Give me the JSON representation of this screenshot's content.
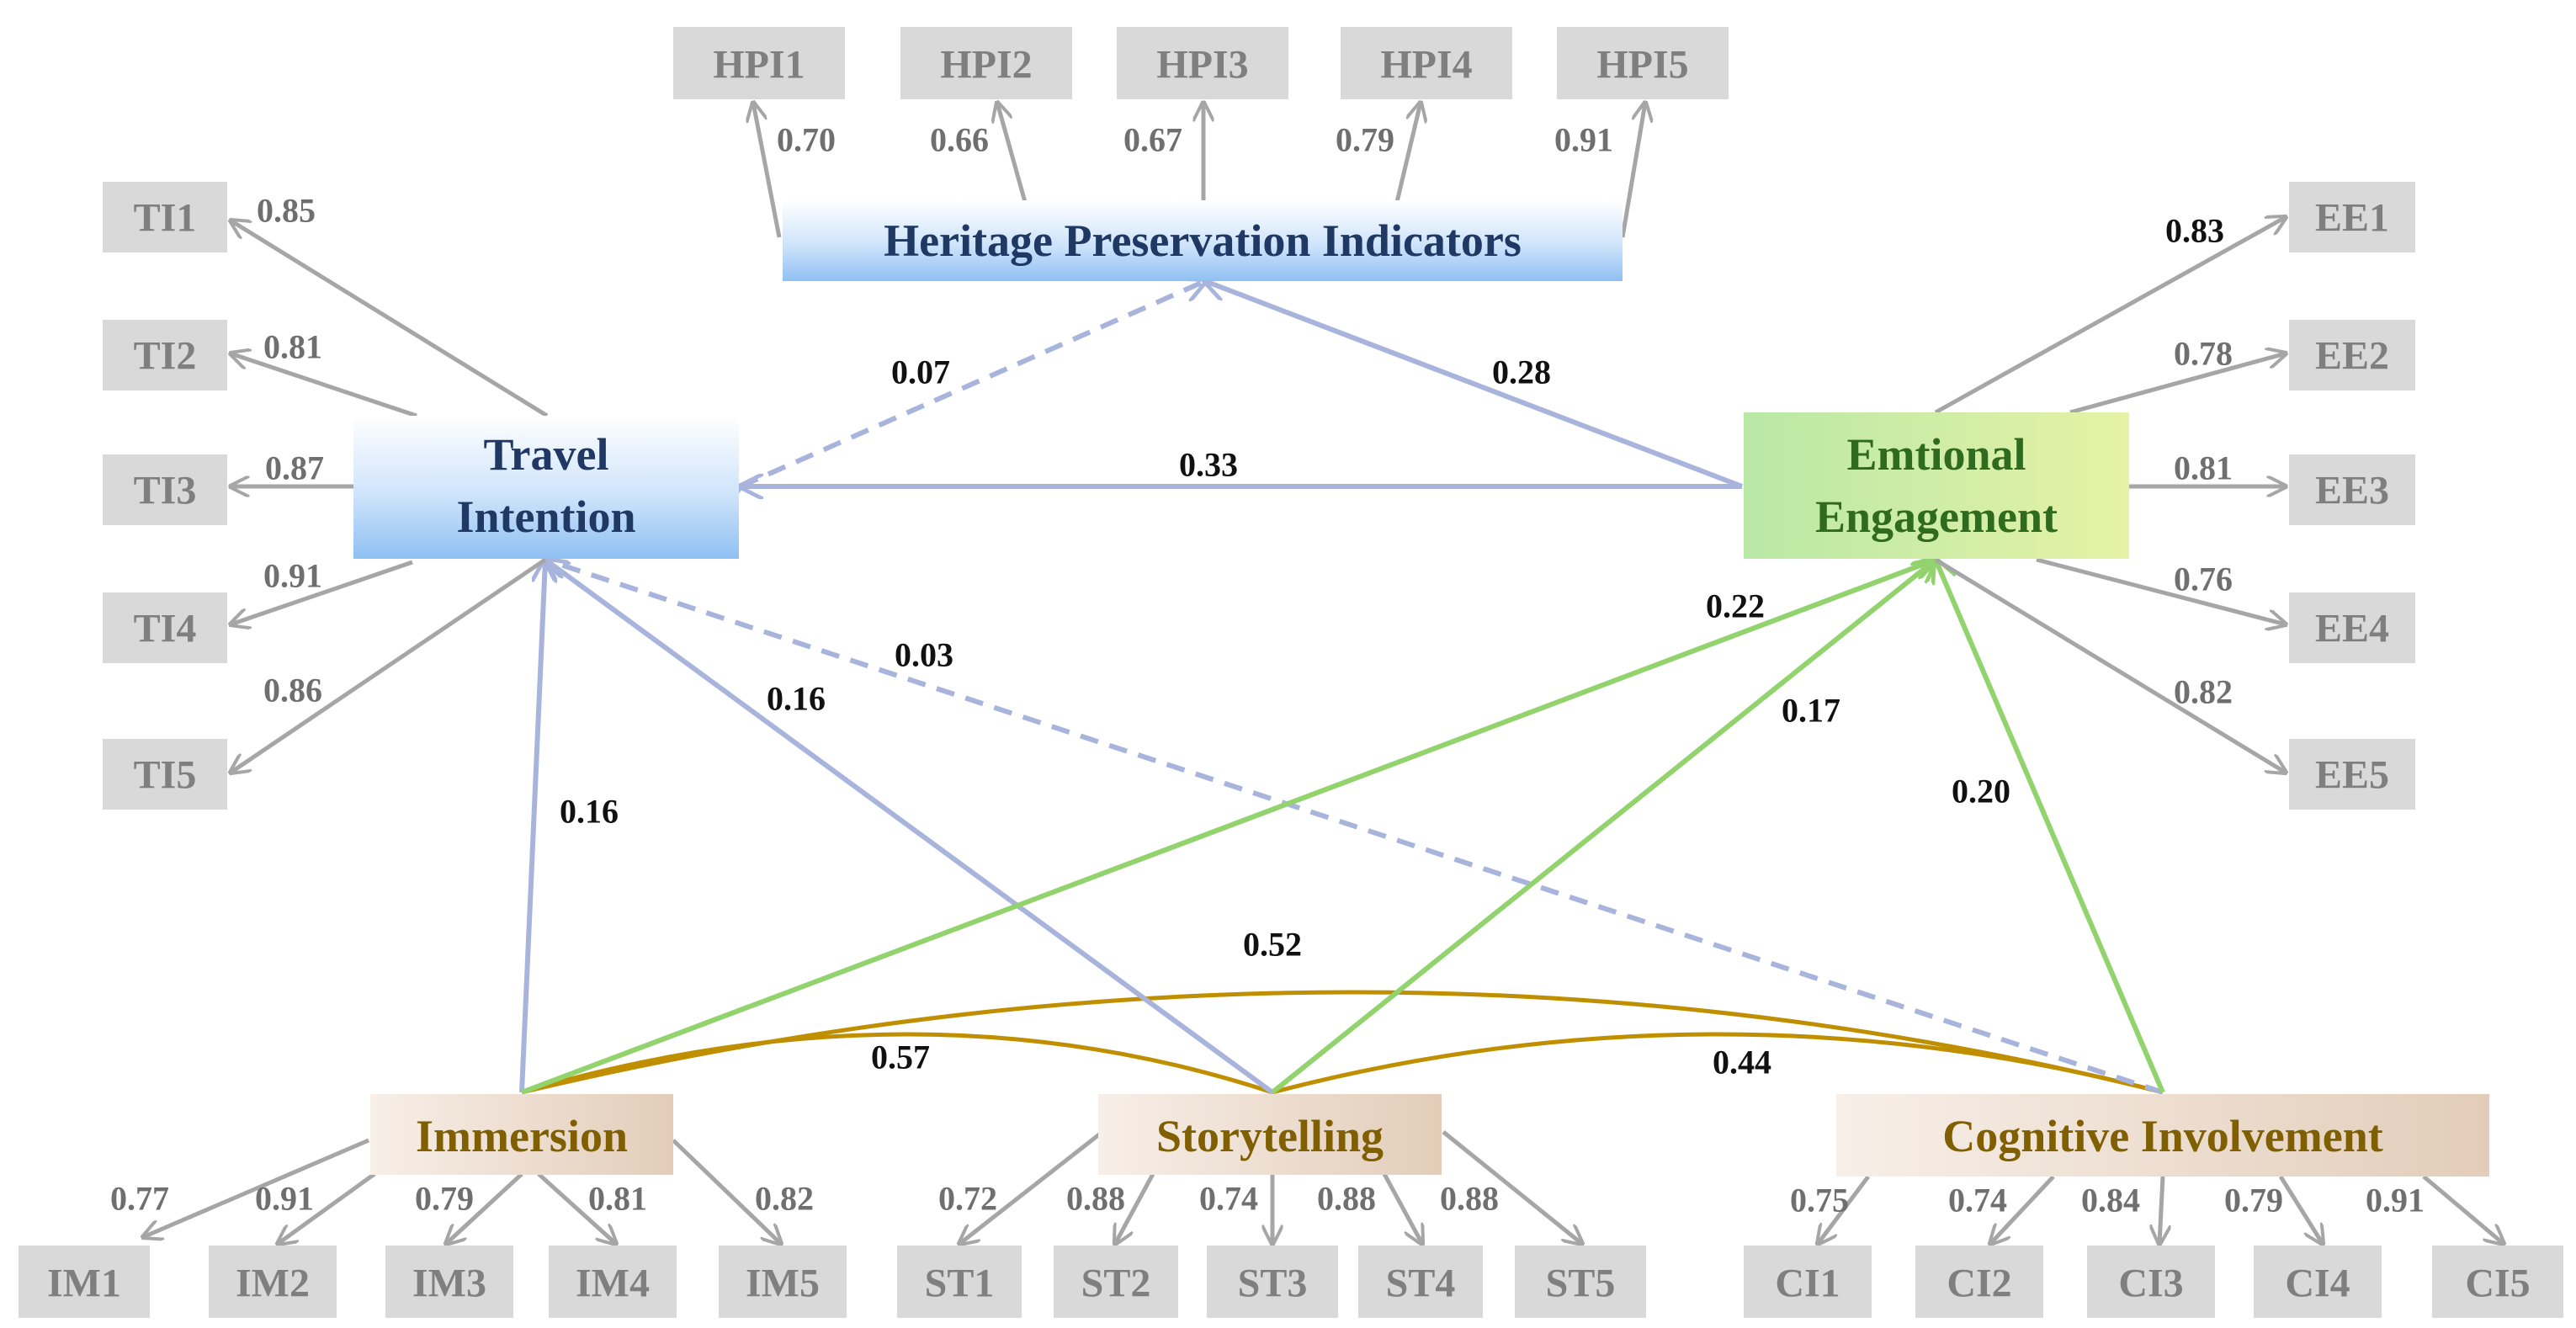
{
  "latents": {
    "hpi": {
      "label": "Heritage Preservation Indicators"
    },
    "ti": {
      "line1": "Travel",
      "line2": "Intention"
    },
    "ee": {
      "line1": "Emtional",
      "line2": "Engagement"
    },
    "im": {
      "label": "Immersion"
    },
    "st": {
      "label": "Storytelling"
    },
    "ci": {
      "label": "Cognitive Involvement"
    }
  },
  "indicators": {
    "hpi": [
      {
        "label": "HPI1",
        "loading": "0.70"
      },
      {
        "label": "HPI2",
        "loading": "0.66"
      },
      {
        "label": "HPI3",
        "loading": "0.67"
      },
      {
        "label": "HPI4",
        "loading": "0.79"
      },
      {
        "label": "HPI5",
        "loading": "0.91"
      }
    ],
    "ti": [
      {
        "label": "TI1",
        "loading": "0.85"
      },
      {
        "label": "TI2",
        "loading": "0.81"
      },
      {
        "label": "TI3",
        "loading": "0.87"
      },
      {
        "label": "TI4",
        "loading": "0.91"
      },
      {
        "label": "TI5",
        "loading": "0.86"
      }
    ],
    "ee": [
      {
        "label": "EE1",
        "loading": "0.83"
      },
      {
        "label": "EE2",
        "loading": "0.78"
      },
      {
        "label": "EE3",
        "loading": "0.81"
      },
      {
        "label": "EE4",
        "loading": "0.76"
      },
      {
        "label": "EE5",
        "loading": "0.82"
      }
    ],
    "im": [
      {
        "label": "IM1",
        "loading": "0.77"
      },
      {
        "label": "IM2",
        "loading": "0.91"
      },
      {
        "label": "IM3",
        "loading": "0.79"
      },
      {
        "label": "IM4",
        "loading": "0.81"
      },
      {
        "label": "IM5",
        "loading": "0.82"
      }
    ],
    "st": [
      {
        "label": "ST1",
        "loading": "0.72"
      },
      {
        "label": "ST2",
        "loading": "0.88"
      },
      {
        "label": "ST3",
        "loading": "0.74"
      },
      {
        "label": "ST4",
        "loading": "0.88"
      },
      {
        "label": "ST5",
        "loading": "0.88"
      }
    ],
    "ci": [
      {
        "label": "CI1",
        "loading": "0.75"
      },
      {
        "label": "CI2",
        "loading": "0.74"
      },
      {
        "label": "CI3",
        "loading": "0.84"
      },
      {
        "label": "CI4",
        "loading": "0.79"
      },
      {
        "label": "CI5",
        "loading": "0.91"
      }
    ]
  },
  "paths": {
    "ti_hpi": {
      "value": "0.07",
      "style": "dashed"
    },
    "ee_hpi": {
      "value": "0.28",
      "style": "solid"
    },
    "ee_ti": {
      "value": "0.33",
      "style": "solid"
    },
    "im_ti": {
      "value": "0.16",
      "style": "solid"
    },
    "st_ti": {
      "value": "0.16",
      "style": "solid"
    },
    "ci_ti": {
      "value": "0.03",
      "style": "dashed"
    },
    "im_ee": {
      "value": "0.22",
      "style": "solid"
    },
    "st_ee": {
      "value": "0.17",
      "style": "solid"
    },
    "ci_ee": {
      "value": "0.20",
      "style": "solid"
    }
  },
  "correlations": {
    "im_ci": "0.52",
    "im_st": "0.57",
    "st_ci": "0.44"
  },
  "colors": {
    "indicator_fill": "#d9d9d9",
    "indicator_text": "#7f7f7f",
    "blue_path": "#a9b4dd",
    "green_path": "#92d36e",
    "correlation": "#bf8f00",
    "blue_latent_text": "#1f3864",
    "green_latent_text": "#2e6b1e",
    "brown_latent_text": "#7f5f00"
  }
}
